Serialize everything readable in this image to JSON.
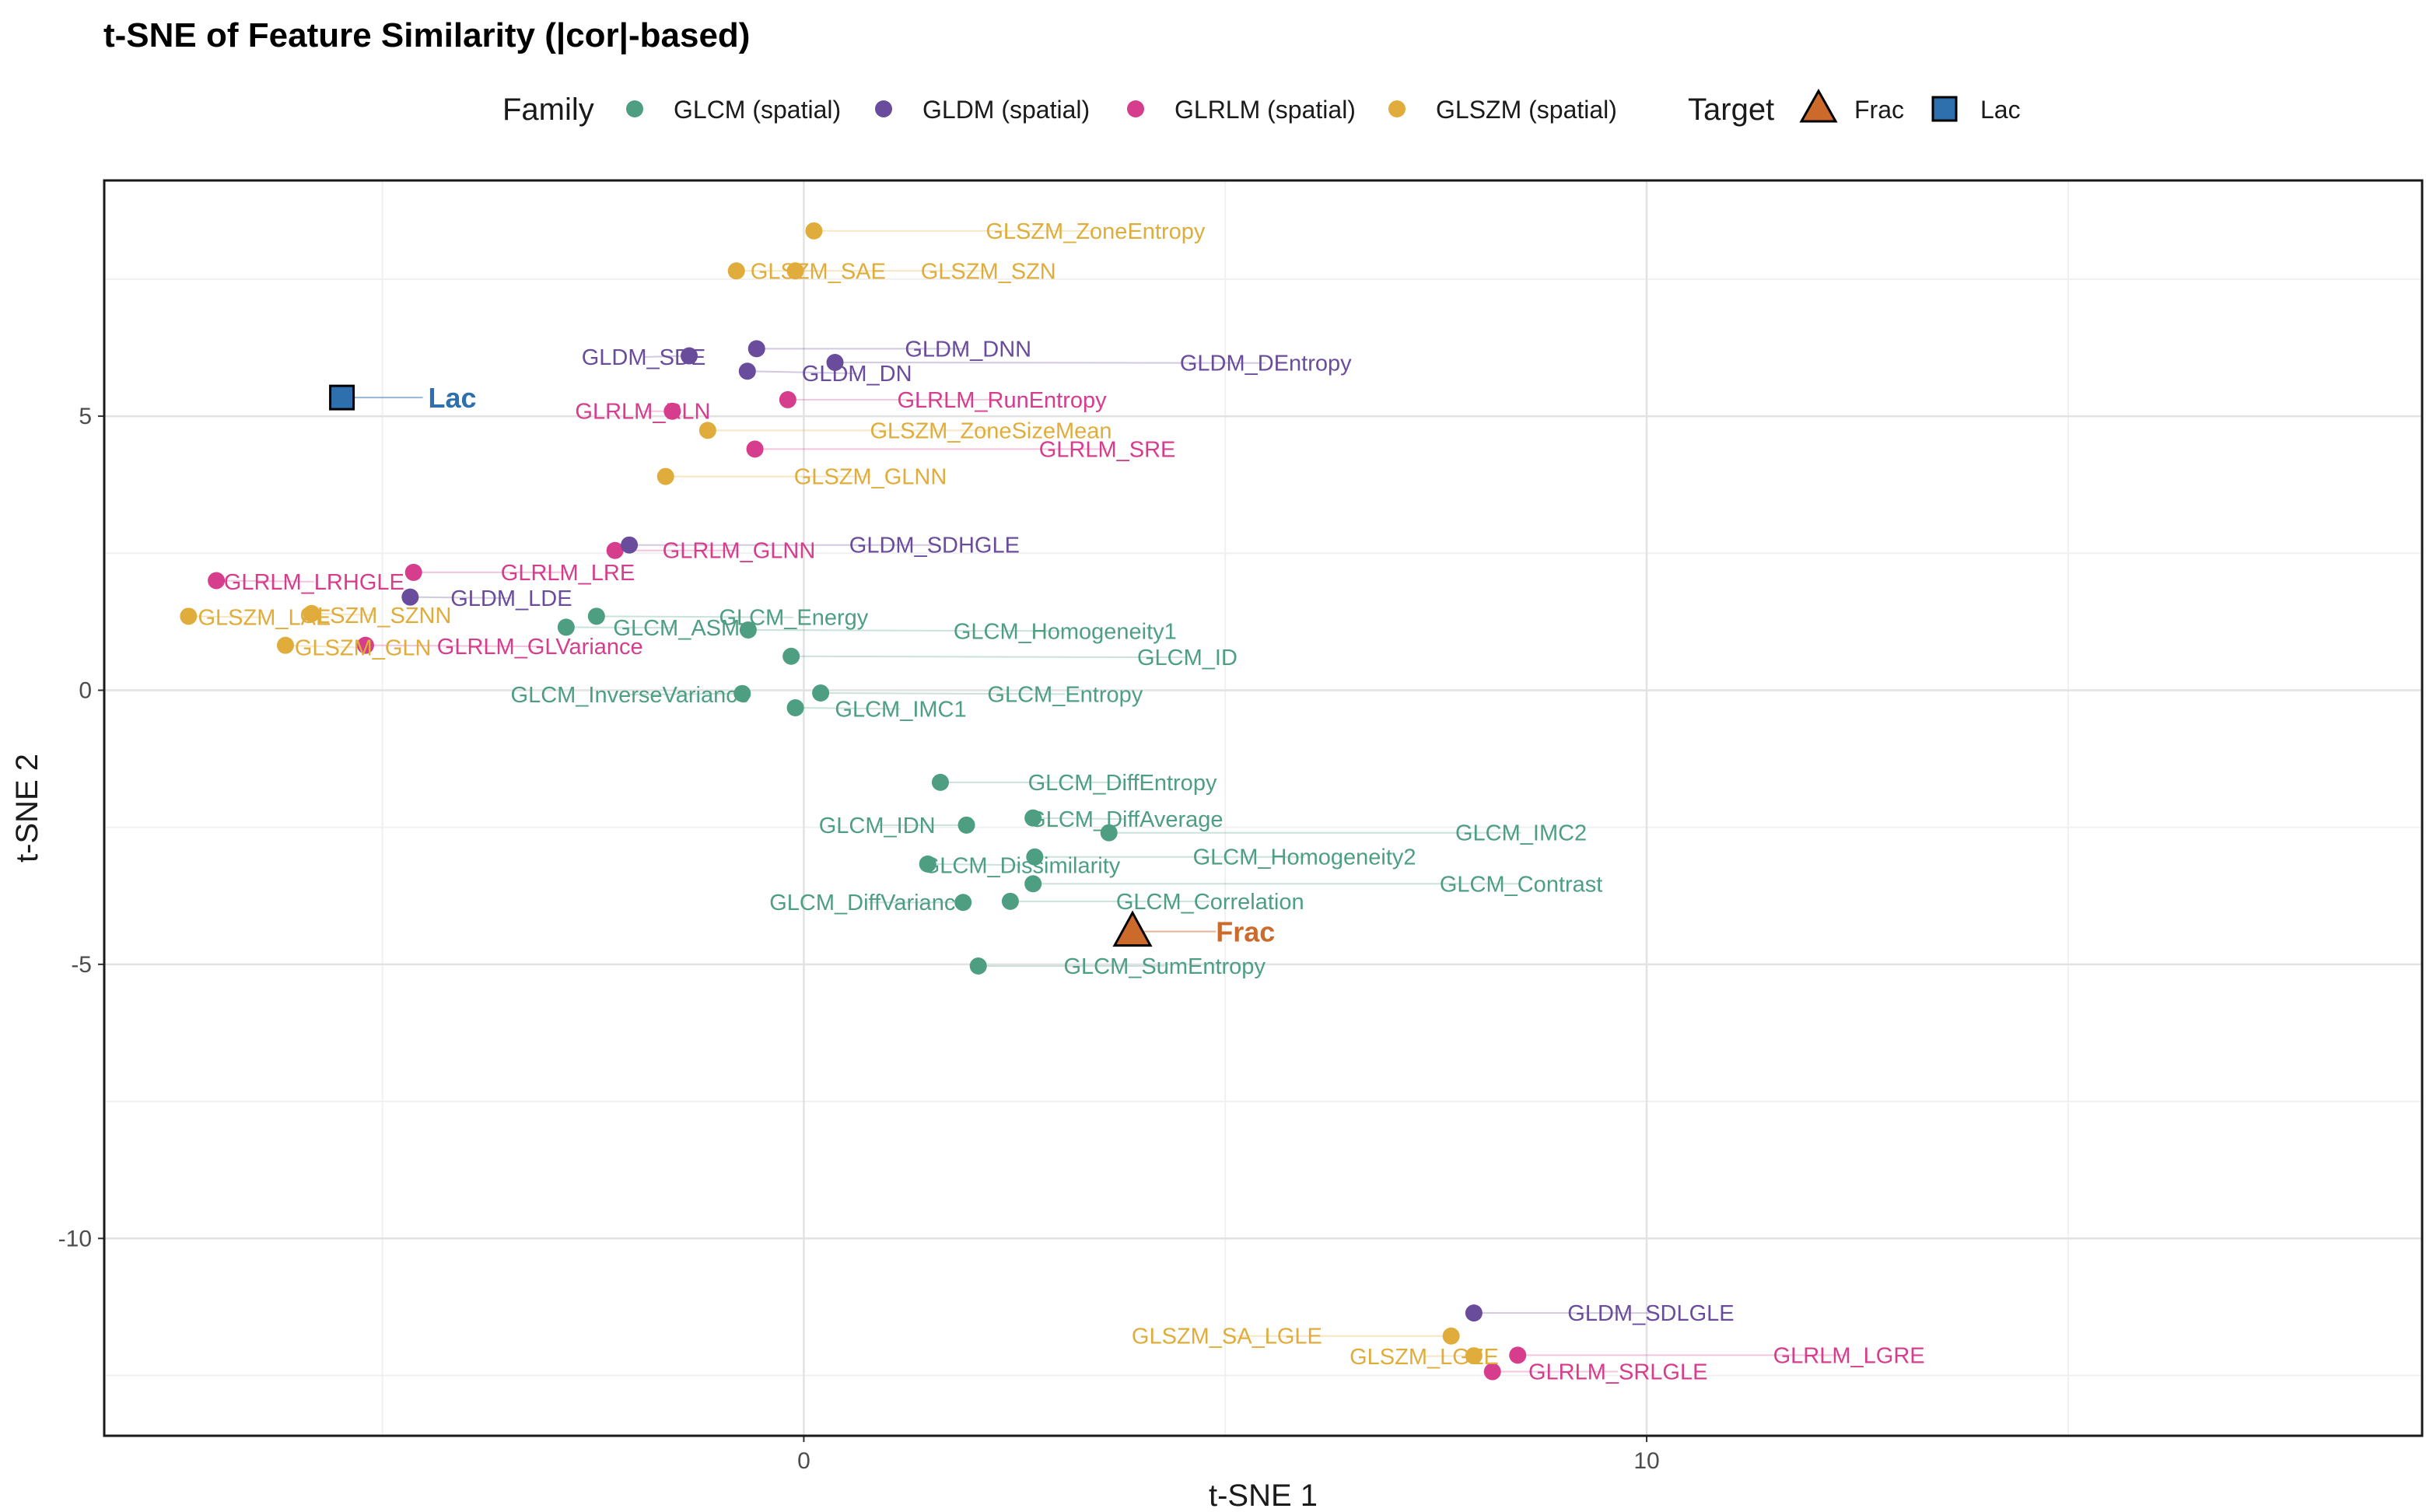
{
  "chart_data": {
    "type": "scatter",
    "title": "t-SNE of Feature Similarity (|cor|-based)",
    "xlabel": "t-SNE 1",
    "ylabel": "t-SNE 2",
    "xlim": [
      -8.3,
      19.2
    ],
    "ylim": [
      -13.6,
      9.3
    ],
    "x_ticks": [
      0,
      10
    ],
    "x_tick_labels": [
      "0",
      "10"
    ],
    "y_ticks": [
      5,
      0,
      -5,
      -10
    ],
    "y_tick_labels": [
      "5",
      "0",
      "-5",
      "-10"
    ],
    "grid": true,
    "legend": {
      "position": "top",
      "family_title": "Family",
      "target_title": "Target",
      "families": [
        {
          "name": "GLCM (spatial)",
          "color": "#4e9e82"
        },
        {
          "name": "GLDM (spatial)",
          "color": "#6a4c9c"
        },
        {
          "name": "GLRLM (spatial)",
          "color": "#d63d8c"
        },
        {
          "name": "GLSZM (spatial)",
          "color": "#e0ad3c"
        }
      ],
      "targets": [
        {
          "name": "Frac",
          "shape": "triangle",
          "color": "#cc6a2c"
        },
        {
          "name": "Lac",
          "shape": "square",
          "color": "#2e6fad"
        }
      ]
    },
    "points": [
      {
        "label": "GLSZM_ZoneEntropy",
        "family": "GLSZM (spatial)",
        "x": 0.12,
        "y": 8.38,
        "lx": 3.46,
        "ly": 8.38
      },
      {
        "label": "GLSZM_SAE",
        "family": "GLSZM (spatial)",
        "x": -0.8,
        "y": 7.65,
        "lx": 0.17,
        "ly": 7.65
      },
      {
        "label": "GLSZM_SZN",
        "family": "GLSZM (spatial)",
        "x": -0.1,
        "y": 7.65,
        "lx": 2.19,
        "ly": 7.65
      },
      {
        "label": "GLDM_SDE",
        "family": "GLDM (spatial)",
        "x": -1.36,
        "y": 6.1,
        "lx": -1.9,
        "ly": 6.08
      },
      {
        "label": "GLDM_DNN",
        "family": "GLDM (spatial)",
        "x": -0.56,
        "y": 6.23,
        "lx": 1.95,
        "ly": 6.23
      },
      {
        "label": "GLDM_DN",
        "family": "GLDM (spatial)",
        "x": -0.67,
        "y": 5.82,
        "lx": 0.63,
        "ly": 5.78
      },
      {
        "label": "GLDM_DEntropy",
        "family": "GLDM (spatial)",
        "x": 0.37,
        "y": 5.98,
        "lx": 5.48,
        "ly": 5.97
      },
      {
        "label": "GLRLM_RunEntropy",
        "family": "GLRLM (spatial)",
        "x": -0.19,
        "y": 5.3,
        "lx": 2.35,
        "ly": 5.3
      },
      {
        "label": "GLRLM_RLN",
        "family": "GLRLM (spatial)",
        "x": -1.56,
        "y": 5.09,
        "lx": -1.91,
        "ly": 5.09
      },
      {
        "label": "GLSZM_ZoneSizeMean",
        "family": "GLSZM (spatial)",
        "x": -1.14,
        "y": 4.74,
        "lx": 2.22,
        "ly": 4.74
      },
      {
        "label": "GLRLM_SRE",
        "family": "GLRLM (spatial)",
        "x": -0.58,
        "y": 4.4,
        "lx": 3.6,
        "ly": 4.4
      },
      {
        "label": "GLSZM_GLNN",
        "family": "GLSZM (spatial)",
        "x": -1.64,
        "y": 3.9,
        "lx": 0.79,
        "ly": 3.9
      },
      {
        "label": "GLRLM_GLNN",
        "family": "GLRLM (spatial)",
        "x": -2.24,
        "y": 2.55,
        "lx": -0.77,
        "ly": 2.55
      },
      {
        "label": "GLDM_SDHGLE",
        "family": "GLDM (spatial)",
        "x": -2.07,
        "y": 2.65,
        "lx": 1.55,
        "ly": 2.65
      },
      {
        "label": "GLRLM_LRE",
        "family": "GLRLM (spatial)",
        "x": -4.63,
        "y": 2.15,
        "lx": -2.8,
        "ly": 2.15
      },
      {
        "label": "GLRLM_LRHGLE",
        "family": "GLRLM (spatial)",
        "x": -6.97,
        "y": 2.0,
        "lx": -5.81,
        "ly": 1.98
      },
      {
        "label": "GLDM_LDE",
        "family": "GLDM (spatial)",
        "x": -4.67,
        "y": 1.7,
        "lx": -3.47,
        "ly": 1.68
      },
      {
        "label": "GLSZM_LAE",
        "family": "GLSZM (spatial)",
        "x": -7.3,
        "y": 1.35,
        "lx": -6.4,
        "ly": 1.33
      },
      {
        "label": "GLSZM_SZNN",
        "family": "GLSZM (spatial)",
        "x": -5.84,
        "y": 1.4,
        "lx": -5.08,
        "ly": 1.37
      },
      {
        "label": "GLSZM_GLN",
        "family": "GLSZM (spatial)",
        "x": -6.15,
        "y": 0.82,
        "lx": -5.23,
        "ly": 0.78
      },
      {
        "label": "GLRLM_GLVariance",
        "family": "GLRLM (spatial)",
        "x": -5.2,
        "y": 0.82,
        "lx": -3.13,
        "ly": 0.8
      },
      {
        "label": "GLCM_ASM",
        "family": "GLCM (spatial)",
        "x": -2.82,
        "y": 1.15,
        "lx": -1.51,
        "ly": 1.14
      },
      {
        "label": "GLCM_Energy",
        "family": "GLCM (spatial)",
        "x": -2.46,
        "y": 1.35,
        "lx": -0.12,
        "ly": 1.33
      },
      {
        "label": "GLCM_Homogeneity1",
        "family": "GLCM (spatial)",
        "x": -0.66,
        "y": 1.1,
        "lx": 3.1,
        "ly": 1.08
      },
      {
        "label": "GLCM_ID",
        "family": "GLCM (spatial)",
        "x": -0.15,
        "y": 0.62,
        "lx": 4.55,
        "ly": 0.6
      },
      {
        "label": "GLCM_InverseVariance",
        "family": "GLCM (spatial)",
        "x": -0.73,
        "y": -0.06,
        "lx": -2.06,
        "ly": -0.08
      },
      {
        "label": "GLCM_Entropy",
        "family": "GLCM (spatial)",
        "x": 0.2,
        "y": -0.05,
        "lx": 3.1,
        "ly": -0.07
      },
      {
        "label": "GLCM_IMC1",
        "family": "GLCM (spatial)",
        "x": -0.1,
        "y": -0.32,
        "lx": 1.15,
        "ly": -0.34
      },
      {
        "label": "GLCM_DiffEntropy",
        "family": "GLCM (spatial)",
        "x": 1.62,
        "y": -1.68,
        "lx": 3.78,
        "ly": -1.68
      },
      {
        "label": "GLCM_IDN",
        "family": "GLCM (spatial)",
        "x": 1.93,
        "y": -2.46,
        "lx": 0.87,
        "ly": -2.46
      },
      {
        "label": "GLCM_DiffAverage",
        "family": "GLCM (spatial)",
        "x": 2.72,
        "y": -2.33,
        "lx": 3.82,
        "ly": -2.35
      },
      {
        "label": "GLCM_IMC2",
        "family": "GLCM (spatial)",
        "x": 3.62,
        "y": -2.6,
        "lx": 8.51,
        "ly": -2.6
      },
      {
        "label": "GLCM_Dissimilarity",
        "family": "GLCM (spatial)",
        "x": 1.47,
        "y": -3.17,
        "lx": 2.58,
        "ly": -3.19
      },
      {
        "label": "GLCM_Homogeneity2",
        "family": "GLCM (spatial)",
        "x": 2.74,
        "y": -3.04,
        "lx": 5.94,
        "ly": -3.04
      },
      {
        "label": "GLCM_Contrast",
        "family": "GLCM (spatial)",
        "x": 2.72,
        "y": -3.53,
        "lx": 8.51,
        "ly": -3.53
      },
      {
        "label": "GLCM_DiffVariance",
        "family": "GLCM (spatial)",
        "x": 1.89,
        "y": -3.87,
        "lx": 0.77,
        "ly": -3.87
      },
      {
        "label": "GLCM_Correlation",
        "family": "GLCM (spatial)",
        "x": 2.45,
        "y": -3.85,
        "lx": 4.82,
        "ly": -3.85
      },
      {
        "label": "GLCM_SumEntropy",
        "family": "GLCM (spatial)",
        "x": 2.07,
        "y": -5.03,
        "lx": 4.28,
        "ly": -5.03
      },
      {
        "label": "GLDM_SDLGLE",
        "family": "GLDM (spatial)",
        "x": 7.95,
        "y": -11.36,
        "lx": 10.05,
        "ly": -11.36
      },
      {
        "label": "GLSZM_SA_LGLE",
        "family": "GLSZM (spatial)",
        "x": 7.68,
        "y": -11.78,
        "lx": 5.02,
        "ly": -11.78
      },
      {
        "label": "GLSZM_LGZE",
        "family": "GLSZM (spatial)",
        "x": 7.95,
        "y": -12.14,
        "lx": 7.36,
        "ly": -12.15
      },
      {
        "label": "GLRLM_LGRE",
        "family": "GLRLM (spatial)",
        "x": 8.47,
        "y": -12.13,
        "lx": 12.4,
        "ly": -12.13
      },
      {
        "label": "GLRLM_SRLGLE",
        "family": "GLRLM (spatial)",
        "x": 8.17,
        "y": -12.43,
        "lx": 9.66,
        "ly": -12.43
      }
    ],
    "targets": [
      {
        "label": "Lac",
        "shape": "square",
        "x": -5.48,
        "y": 5.34,
        "lx": -4.17,
        "ly": 5.34
      },
      {
        "label": "Frac",
        "shape": "triangle",
        "x": 3.9,
        "y": -4.4,
        "lx": 5.24,
        "ly": -4.4
      }
    ]
  }
}
